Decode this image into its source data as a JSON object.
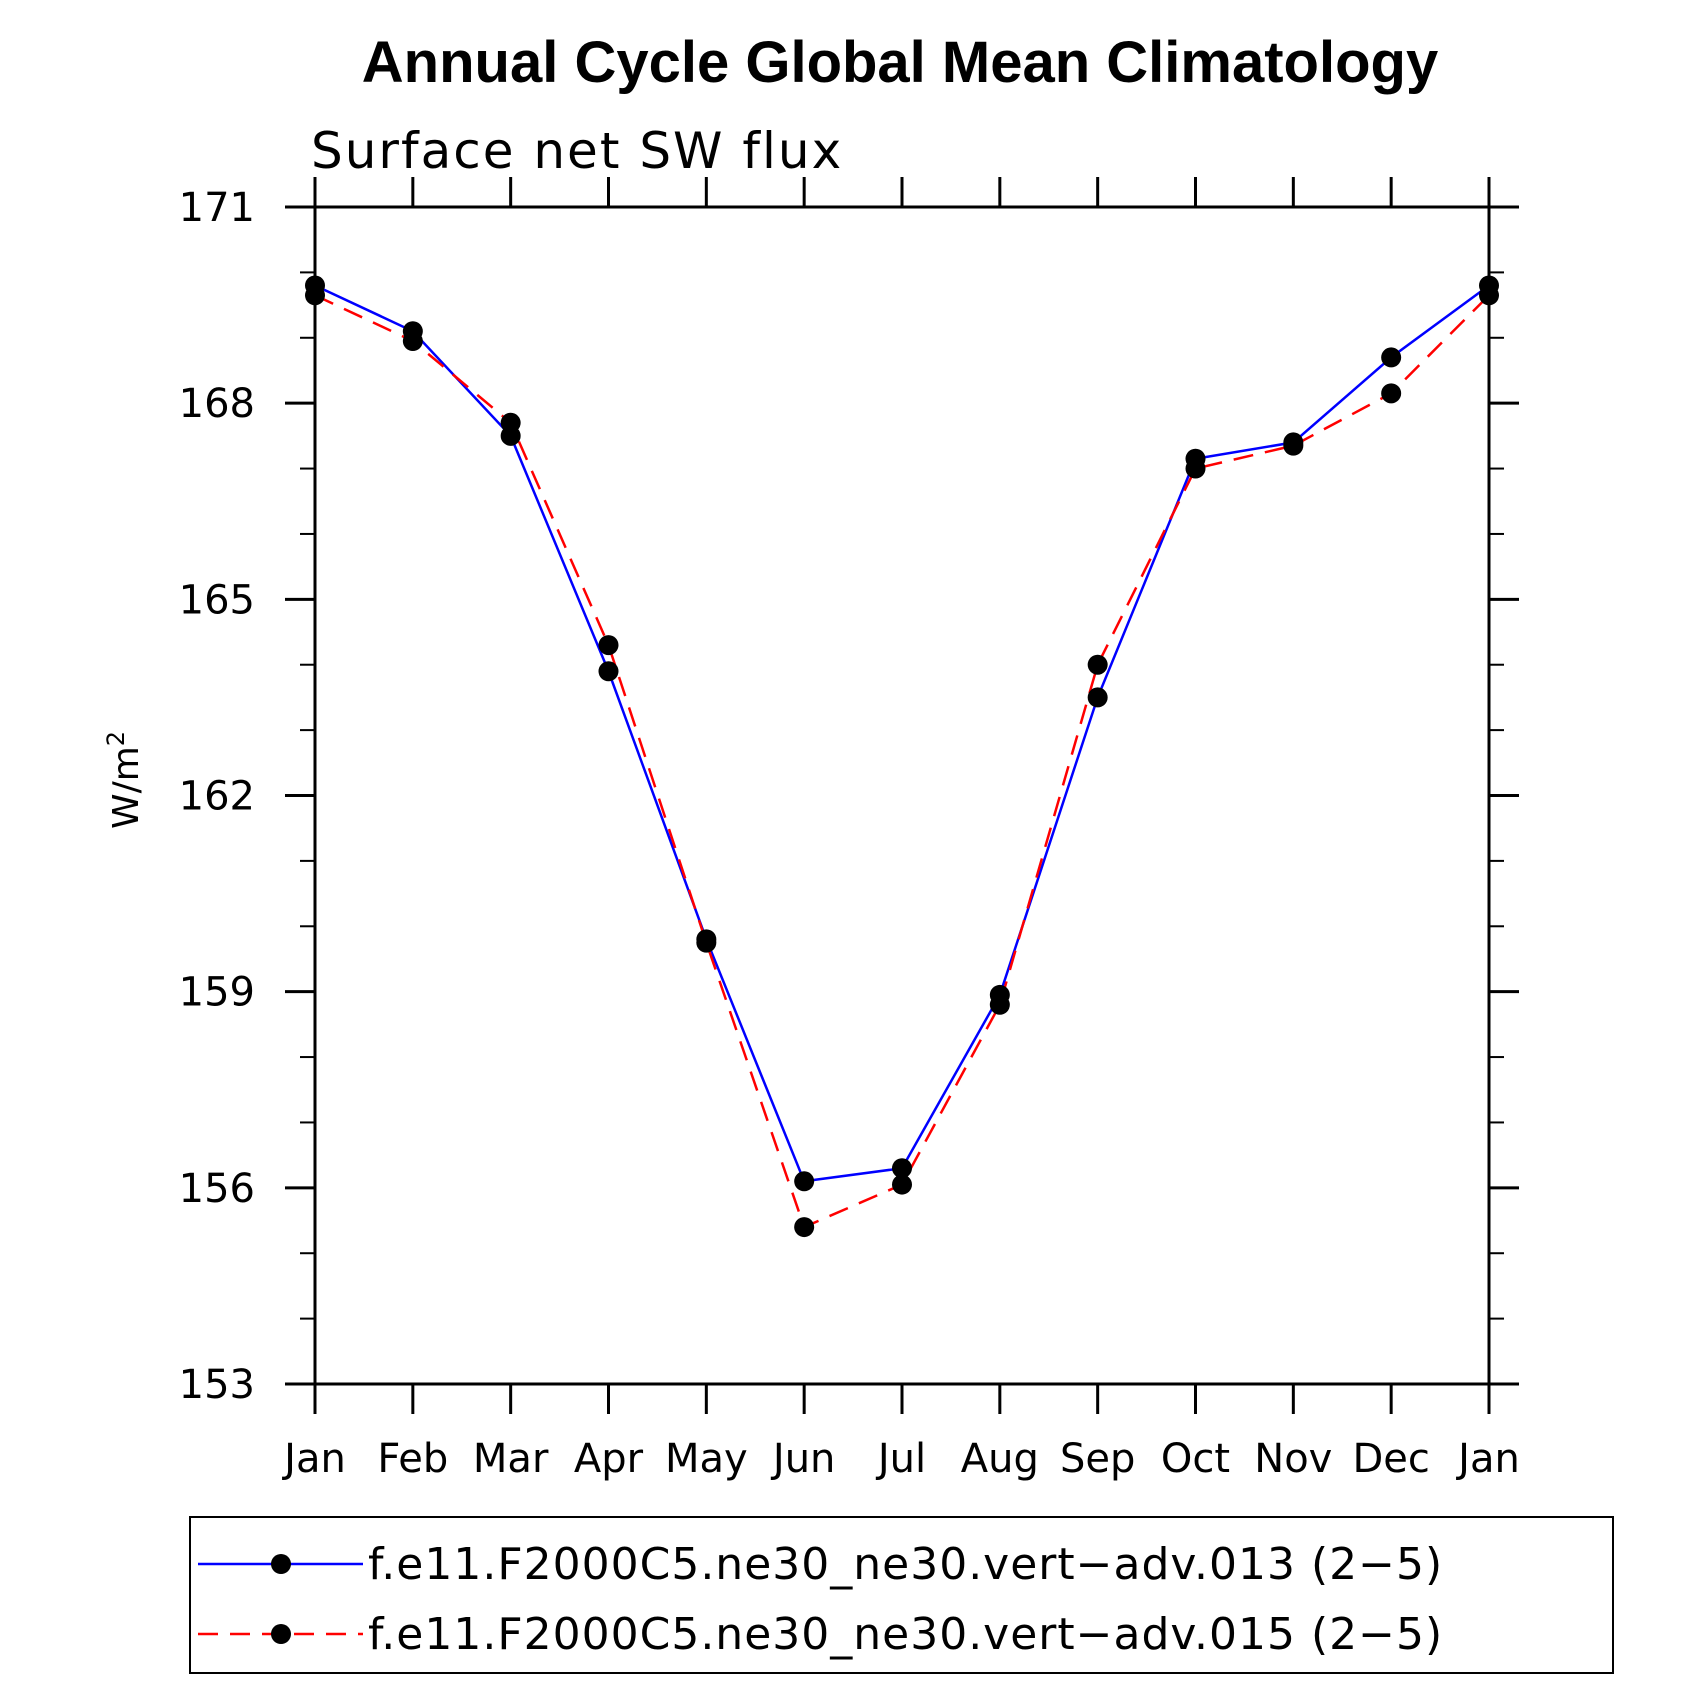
{
  "chart_data": {
    "type": "line",
    "title": "Annual Cycle Global Mean Climatology",
    "subtitle": "Surface net SW flux",
    "xlabel": "",
    "ylabel": "W/m",
    "ylabel_superscript": "2",
    "categories": [
      "Jan",
      "Feb",
      "Mar",
      "Apr",
      "May",
      "Jun",
      "Jul",
      "Aug",
      "Sep",
      "Oct",
      "Nov",
      "Dec",
      "Jan"
    ],
    "ylim": [
      153,
      171
    ],
    "yticks": [
      153,
      156,
      159,
      162,
      165,
      168,
      171
    ],
    "yticks_labels": [
      "153",
      "156",
      "159",
      "162",
      "165",
      "168",
      "171"
    ],
    "y_minor_step": 1,
    "series": [
      {
        "name": "f.e11.F2000C5.ne30_ne30.vert−adv.013 (2−5)",
        "color": "#0000ff",
        "dashed": false,
        "values": [
          169.8,
          169.1,
          167.5,
          163.9,
          159.8,
          156.1,
          156.3,
          158.95,
          163.5,
          167.15,
          167.4,
          168.7,
          169.8
        ]
      },
      {
        "name": "f.e11.F2000C5.ne30_ne30.vert−adv.015 (2−5)",
        "color": "#ff0000",
        "dashed": true,
        "values": [
          169.65,
          168.95,
          167.7,
          164.3,
          159.75,
          155.4,
          156.05,
          158.8,
          164.0,
          167.0,
          167.35,
          168.15,
          169.65
        ]
      }
    ]
  }
}
